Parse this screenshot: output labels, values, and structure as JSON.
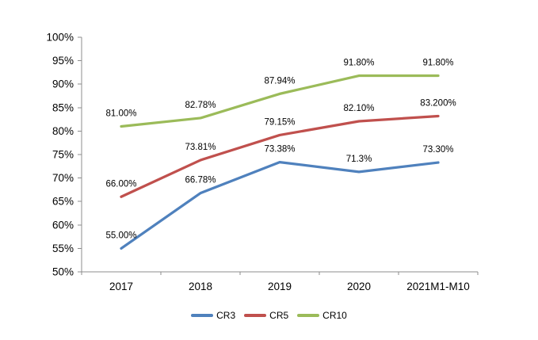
{
  "chart_data": {
    "type": "line",
    "title": "",
    "xlabel": "",
    "ylabel": "",
    "categories": [
      "2017",
      "2018",
      "2019",
      "2020",
      "2021M1-M10"
    ],
    "series": [
      {
        "name": "CR3",
        "color": "#4F81BD",
        "values": [
          55.0,
          66.78,
          73.38,
          71.3,
          73.3
        ],
        "labels": [
          "55.00%",
          "66.78%",
          "73.38%",
          "71.3%",
          "73.30%"
        ]
      },
      {
        "name": "CR5",
        "color": "#C0504D",
        "values": [
          66.0,
          73.81,
          79.15,
          82.1,
          83.2
        ],
        "labels": [
          "66.00%",
          "73.81%",
          "79.15%",
          "82.10%",
          "83.200%"
        ]
      },
      {
        "name": "CR10",
        "color": "#9BBB59",
        "values": [
          81.0,
          82.78,
          87.94,
          91.8,
          91.8
        ],
        "labels": [
          "81.00%",
          "82.78%",
          "87.94%",
          "91.80%",
          "91.80%"
        ]
      }
    ],
    "ylim": [
      50,
      100
    ],
    "ytick_step": 5,
    "ytick_labels": [
      "50%",
      "55%",
      "60%",
      "65%",
      "70%",
      "75%",
      "80%",
      "85%",
      "90%",
      "95%",
      "100%"
    ],
    "grid": false,
    "legend_position": "bottom",
    "axis_color": "#8C8C8C",
    "text_color": "#000000",
    "background": "#FFFFFF"
  }
}
